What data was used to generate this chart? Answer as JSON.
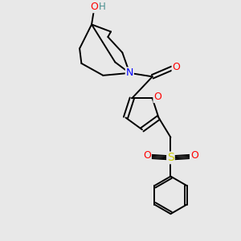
{
  "bg_color": "#e8e8e8",
  "atom_colors": {
    "O": "#ff0000",
    "N": "#0000ff",
    "S": "#cccc00",
    "C": "#000000",
    "H": "#4a9090"
  },
  "bond_lw": 1.4,
  "figsize": [
    3.0,
    3.0
  ],
  "dpi": 100,
  "xlim": [
    0,
    10
  ],
  "ylim": [
    0,
    10
  ]
}
